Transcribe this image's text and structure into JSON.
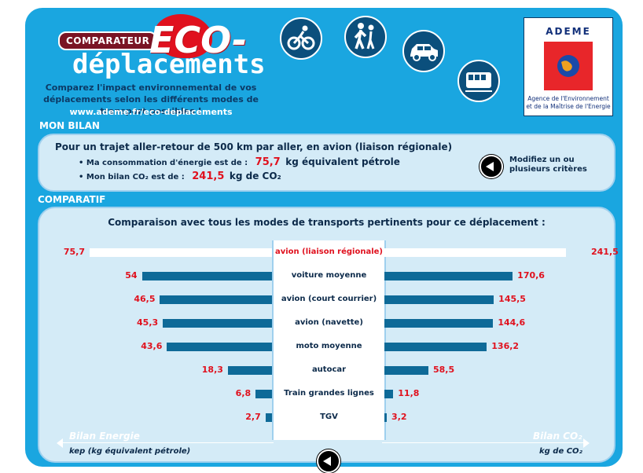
{
  "header": {
    "badge": "COMPARATEUR",
    "eco": "ECO-",
    "title": "déplacements",
    "tagline": "Comparez l'impact environnemental de vos déplacements selon les différents modes de transport possibles !",
    "url": "www.ademe.fr/eco-deplacements"
  },
  "modes_icons": [
    "bicycle-icon",
    "pedestrian-icon",
    "car-icon",
    "train-icon"
  ],
  "ademe": {
    "title": "ADEME",
    "subtitle": "Agence de l'Environnement et de la Maîtrise de l'Energie"
  },
  "bilan": {
    "section": "MON BILAN",
    "trip": "Pour un trajet aller-retour de 500 km par aller, en avion (liaison régionale)",
    "energy_label": "• Ma consommation d'énergie est de :",
    "energy_value": "75,7",
    "energy_unit": "kg équivalent pétrole",
    "co2_label": "• Mon bilan CO₂ est de :",
    "co2_value": "241,5",
    "co2_unit": "kg de CO₂",
    "modify": "Modifiez un ou plusieurs critères"
  },
  "comparatif": {
    "section": "COMPARATIF",
    "title": "Comparaison avec tous les modes de transports pertinents pour ce déplacement :",
    "left_axis_title": "Bilan Energie",
    "left_axis_unit": "kep (kg équivalent pétrole)",
    "right_axis_title": "Bilan CO₂",
    "right_axis_unit": "kg de CO₂"
  },
  "chart_data": {
    "type": "bar",
    "categories": [
      "avion (liaison régionale)",
      "voiture moyenne",
      "avion (court courrier)",
      "avion (navette)",
      "moto moyenne",
      "autocar",
      "Train grandes lignes",
      "TGV"
    ],
    "series": [
      {
        "name": "Bilan Energie",
        "values": [
          75.7,
          54,
          46.5,
          45.3,
          43.6,
          18.3,
          6.8,
          2.7
        ],
        "labels": [
          "75,7",
          "54",
          "46,5",
          "45,3",
          "43,6",
          "18,3",
          "6,8",
          "2,7"
        ]
      },
      {
        "name": "Bilan CO₂",
        "values": [
          241.5,
          170.6,
          145.5,
          144.6,
          136.2,
          58.5,
          11.8,
          3.2
        ],
        "labels": [
          "241,5",
          "170,6",
          "145,5",
          "144,6",
          "136,2",
          "58,5",
          "11,8",
          "3,2"
        ]
      }
    ],
    "highlight_index": 0,
    "colors": {
      "bar": "#0e6a98",
      "highlight": "#ffffff",
      "value": "#e0111e"
    }
  }
}
